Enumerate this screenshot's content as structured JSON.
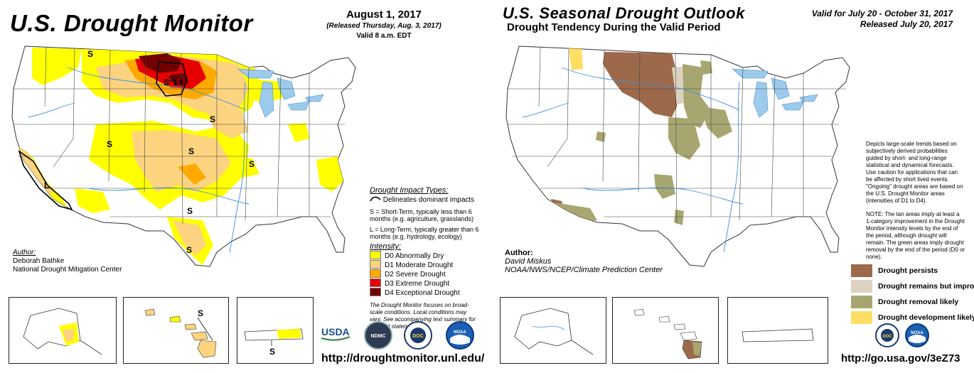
{
  "monitor": {
    "title": "U.S. Drought Monitor",
    "date": "August 1, 2017",
    "released": "(Released Thursday, Aug. 3, 2017)",
    "valid": "Valid 8 a.m. EDT",
    "author_heading": "Author:",
    "author_name": "Deborah Bathke",
    "author_org": "National Drought Mitigation Center",
    "impact_heading": "Drought Impact Types:",
    "impact_line": "Delineates dominant impacts",
    "short_term": "S = Short-Term, typically less than 6 months (e.g. agriculture, grasslands)",
    "long_term": "L = Long-Term, typically greater than 6 months (e.g. hydrology, ecology)",
    "intensity_heading": "Intensity:",
    "intensity": [
      {
        "label": "D0 Abnormally Dry",
        "color": "#FFFF00"
      },
      {
        "label": "D1 Moderate Drought",
        "color": "#FCD37F"
      },
      {
        "label": "D2 Severe Drought",
        "color": "#FFAA00"
      },
      {
        "label": "D3 Extreme Drought",
        "color": "#E60000"
      },
      {
        "label": "D4 Exceptional Drought",
        "color": "#730000"
      }
    ],
    "note": "The Drought Monitor focuses on broad-scale conditions. Local conditions may vary. See accompanying text summary for forecast statements.",
    "map_markers": [
      "S",
      "S",
      "S",
      "S",
      "S",
      "S",
      "S",
      "S",
      "L",
      "S",
      "S",
      "L",
      "L"
    ],
    "inset_markers": [
      "S",
      "S"
    ],
    "logos": [
      "USDA",
      "NDMC",
      "DOC",
      "NOAA"
    ],
    "url": "http://droughtmonitor.unl.edu/"
  },
  "outlook": {
    "title": "U.S. Seasonal Drought Outlook",
    "subtitle": "Drought Tendency During the Valid Period",
    "valid": "Valid for July 20 - October 31, 2017",
    "released": "Released July 20, 2017",
    "description": "Depicts large-scale trends based on subjectively derived probabilities guided by short- and long-range statistical and dynamical forecasts. Use caution for applications that can be affected by short lived events. \"Ongoing\" drought areas are based on the U.S. Drought Monitor areas (intensities of D1 to D4).",
    "note": "NOTE: The tan areas imply at least a 1-category improvement in the Drought Monitor intensity levels by the end of the period, although drought will remain. The green areas imply drought removal by the end of the period (D0 or none).",
    "author_heading": "Author:",
    "author_name": "David Miskus",
    "author_org": "NOAA/NWS/NCEP/Climate Prediction Center",
    "legend": [
      {
        "label": "Drought persists",
        "color": "#9C6A4A"
      },
      {
        "label": "Drought remains but improves",
        "color": "#DDD2C0"
      },
      {
        "label": "Drought removal likely",
        "color": "#A8A670"
      },
      {
        "label": "Drought development likely",
        "color": "#FFDE63"
      }
    ],
    "logos": [
      "DOC",
      "NOAA"
    ],
    "url": "http://go.usa.gov/3eZ73"
  }
}
